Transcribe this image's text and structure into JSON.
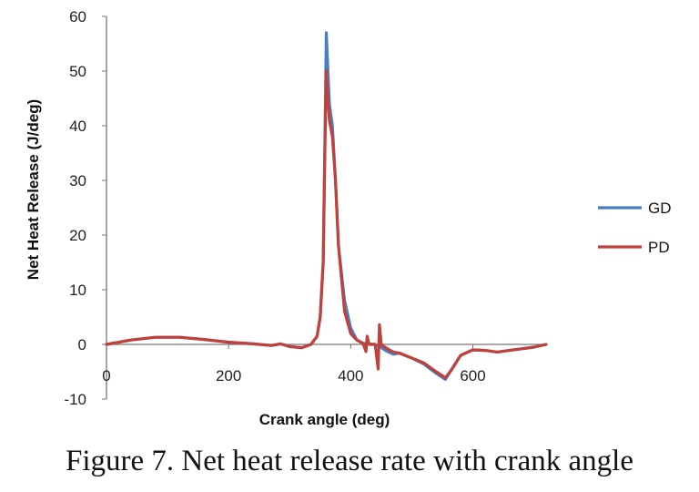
{
  "caption": "Figure 7.  Net heat release rate with crank angle",
  "chart_data": {
    "type": "line",
    "title": "",
    "xlabel": "Crank angle (deg)",
    "ylabel": "Net Heat Release (J/deg)",
    "xlim": [
      0,
      720
    ],
    "ylim": [
      -10,
      60
    ],
    "xticks": [
      0,
      200,
      400,
      600
    ],
    "xtick_labels": [
      "0",
      "200",
      "400",
      "600"
    ],
    "yticks": [
      -10,
      0,
      10,
      20,
      30,
      40,
      50,
      60
    ],
    "ytick_labels": [
      "-10",
      "0",
      "10",
      "20",
      "30",
      "40",
      "50",
      "60"
    ],
    "grid": false,
    "legend": "right",
    "series": [
      {
        "name": "GD",
        "color": "#4a7ec0",
        "x": [
          0,
          40,
          80,
          120,
          160,
          200,
          240,
          270,
          285,
          300,
          320,
          335,
          345,
          350,
          355,
          358,
          360,
          362,
          365,
          370,
          375,
          380,
          390,
          400,
          410,
          420,
          430,
          440,
          450,
          460,
          470,
          480,
          500,
          520,
          540,
          555,
          565,
          580,
          600,
          620,
          640,
          660,
          680,
          700,
          720
        ],
        "y": [
          0,
          0.8,
          1.3,
          1.3,
          0.9,
          0.4,
          0.1,
          -0.2,
          0.1,
          -0.4,
          -0.6,
          0,
          1.5,
          5,
          15,
          40,
          57,
          52,
          44,
          40,
          30,
          18,
          8,
          3,
          0.8,
          0.2,
          0.1,
          0,
          -0.6,
          -1.3,
          -1.8,
          -1.6,
          -2.5,
          -3.6,
          -5.3,
          -6.4,
          -4.6,
          -2,
          -1,
          -1.1,
          -1.4,
          -1.1,
          -0.8,
          -0.5,
          0
        ]
      },
      {
        "name": "PD",
        "color": "#c0413b",
        "x": [
          0,
          40,
          80,
          120,
          160,
          200,
          240,
          270,
          285,
          300,
          320,
          335,
          345,
          350,
          355,
          358,
          360,
          362,
          365,
          370,
          375,
          380,
          390,
          400,
          410,
          420,
          425,
          427,
          430,
          440,
          445,
          447,
          450,
          452,
          460,
          470,
          480,
          500,
          520,
          540,
          555,
          565,
          580,
          600,
          620,
          640,
          660,
          680,
          700,
          720
        ],
        "y": [
          0,
          0.8,
          1.3,
          1.3,
          0.9,
          0.4,
          0.1,
          -0.2,
          0.1,
          -0.4,
          -0.6,
          0,
          1.5,
          5,
          15,
          38,
          50,
          46,
          41,
          38,
          30,
          18,
          6,
          2,
          0.8,
          0.2,
          -1.3,
          1.5,
          0,
          0,
          -4.5,
          3.6,
          0,
          -0.2,
          -0.8,
          -1.4,
          -1.6,
          -2.5,
          -3.4,
          -5,
          -6.1,
          -4.7,
          -2,
          -1,
          -1.1,
          -1.4,
          -1.1,
          -0.8,
          -0.5,
          0
        ]
      }
    ]
  }
}
